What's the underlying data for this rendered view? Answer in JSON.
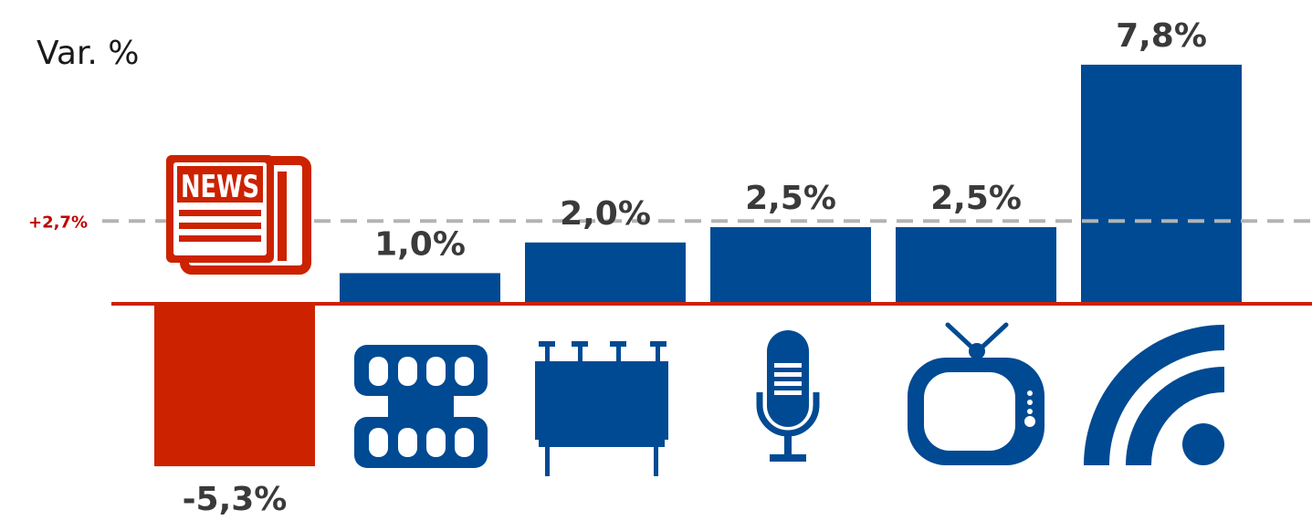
{
  "chart_data": {
    "type": "bar",
    "ylabel": "Var. %",
    "categories": [
      "newspaper-icon",
      "film-icon",
      "billboard-icon",
      "microphone-icon",
      "tv-icon",
      "internet-icon"
    ],
    "values": [
      -5.3,
      1.0,
      2.0,
      2.5,
      2.5,
      7.8
    ],
    "value_labels": [
      "-5,3%",
      "1,0%",
      "2,0%",
      "2,5%",
      "2,5%",
      "7,8%"
    ],
    "reference_line": {
      "value": 2.7,
      "label": "+2,7%"
    },
    "ylim": [
      -5.5,
      8.5
    ],
    "colors": {
      "positive": "#004a93",
      "negative": "#cc2200",
      "axis": "#cc2200",
      "reference": "#b3b3b3",
      "label": "#3a3a3a",
      "ref_label": "#c00000"
    }
  },
  "icons": {
    "news_text": "NEWS"
  }
}
